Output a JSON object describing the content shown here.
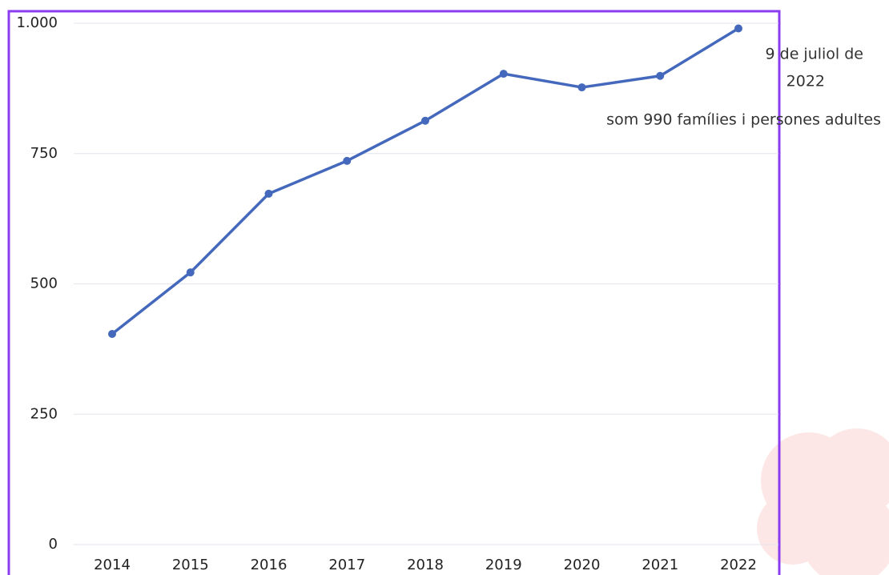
{
  "chart_data": {
    "type": "line",
    "categories": [
      "2014",
      "2015",
      "2016",
      "2017",
      "2018",
      "2019",
      "2020",
      "2021",
      "2022"
    ],
    "series": [
      {
        "name": "famílies i persones adultes",
        "color": "#4468bb",
        "values": [
          404,
          522,
          673,
          736,
          813,
          903,
          877,
          899,
          990
        ]
      }
    ],
    "ylim": [
      0,
      1000
    ],
    "yticks": [
      0,
      250,
      500,
      750,
      {
        "value": 1000,
        "label": "1.000"
      }
    ],
    "grid": true,
    "annotation_lines": [
      "9 de juliol de",
      "2022",
      "som 990 famílies i persones adultes"
    ]
  }
}
